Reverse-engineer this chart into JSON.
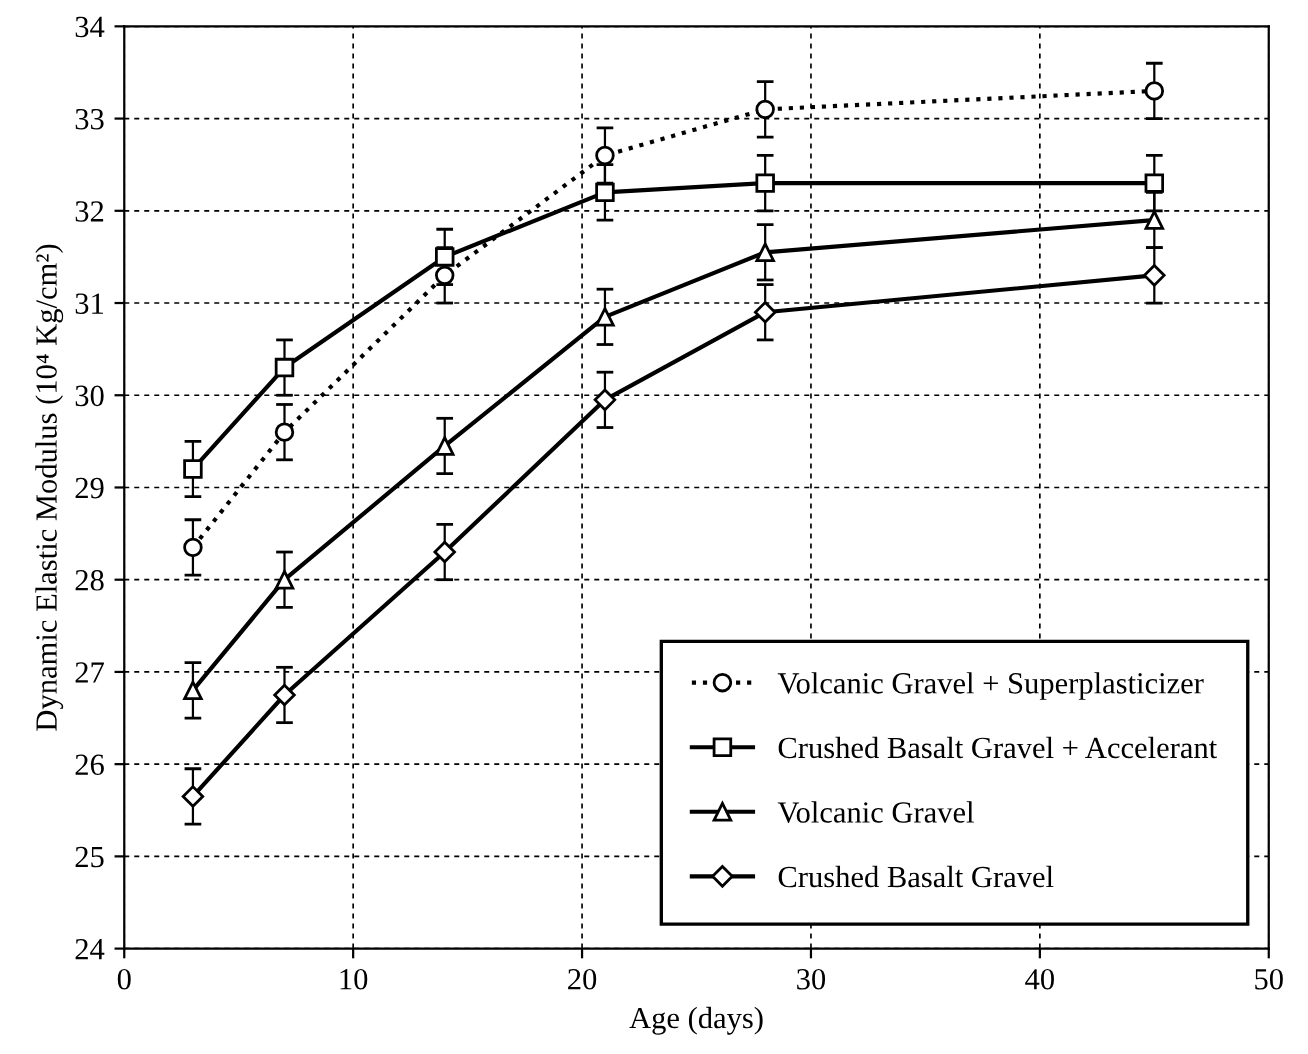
{
  "chart_data": {
    "type": "line",
    "xlabel": "Age (days)",
    "ylabel": "Dynamic Elastic Modulus (10⁴ Kg/cm²)",
    "x": [
      3,
      7,
      14,
      21,
      28,
      45
    ],
    "series": [
      {
        "name": "Volcanic Gravel + Superplasticizer",
        "color": "#000000",
        "marker": "circle",
        "line_style": "dotted",
        "values": [
          28.35,
          29.6,
          31.3,
          32.6,
          33.1,
          33.3
        ],
        "errors": [
          0.3,
          0.3,
          0.3,
          0.3,
          0.3,
          0.3
        ]
      },
      {
        "name": "Crushed Basalt Gravel + Accelerant",
        "color": "#000000",
        "marker": "square",
        "line_style": "solid",
        "values": [
          29.2,
          30.3,
          31.5,
          32.2,
          32.3,
          32.3
        ],
        "errors": [
          0.3,
          0.3,
          0.3,
          0.3,
          0.3,
          0.3
        ]
      },
      {
        "name": "Volcanic Gravel",
        "color": "#000000",
        "marker": "triangle",
        "line_style": "solid",
        "values": [
          26.8,
          28.0,
          29.45,
          30.85,
          31.55,
          31.9
        ],
        "errors": [
          0.3,
          0.3,
          0.3,
          0.3,
          0.3,
          0.3
        ]
      },
      {
        "name": "Crushed Basalt Gravel",
        "color": "#000000",
        "marker": "diamond",
        "line_style": "solid",
        "values": [
          25.65,
          26.75,
          28.3,
          29.95,
          30.9,
          31.3
        ],
        "errors": [
          0.3,
          0.3,
          0.3,
          0.3,
          0.3,
          0.3
        ]
      }
    ],
    "xlim": [
      0,
      50
    ],
    "xticks": [
      0,
      10,
      20,
      30,
      40,
      50
    ],
    "ylim": [
      24,
      34
    ],
    "yticks": [
      24,
      25,
      26,
      27,
      28,
      29,
      30,
      31,
      32,
      33,
      34
    ],
    "grid": true,
    "legend": "bottom right"
  }
}
